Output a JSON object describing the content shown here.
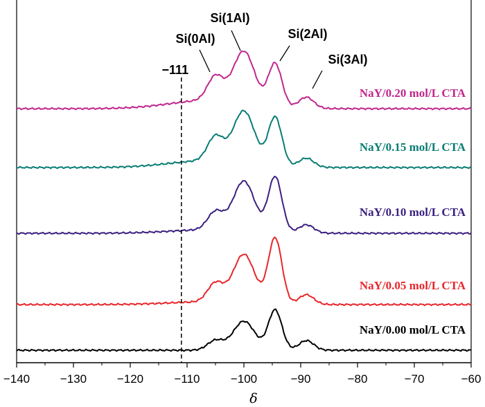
{
  "chart_data": {
    "type": "line",
    "xlabel": "δ",
    "xlim": [
      -140,
      -60
    ],
    "x_ticks": [
      "−140",
      "−130",
      "−120",
      "−110",
      "−100",
      "−90",
      "−80",
      "−70",
      "−60"
    ],
    "y_axis_visible": false,
    "grid": false,
    "reference_line": {
      "x": -111,
      "label": "−111",
      "style": "dashed"
    },
    "peak_annotations": [
      {
        "label": "Si(0Al)",
        "x": -105
      },
      {
        "label": "Si(1Al)",
        "x": -100
      },
      {
        "label": "Si(2Al)",
        "x": -94.5
      },
      {
        "label": "Si(3Al)",
        "x": -89
      }
    ],
    "peak_components": [
      {
        "name": "Si(0Al)",
        "center": -105,
        "width": 1.4
      },
      {
        "name": "Si(1Al)",
        "center": -100,
        "width": 1.9
      },
      {
        "name": "Si(2Al)",
        "center": -94.5,
        "width": 1.2
      },
      {
        "name": "Si(3Al)",
        "center": -89,
        "width": 1.3
      }
    ],
    "series": [
      {
        "name": "NaY/0.00 mol/L CTA",
        "color": "#000000",
        "amplitudes": [
          0.14,
          0.42,
          0.58,
          0.14
        ],
        "broad": 0.0
      },
      {
        "name": "NaY/0.05 mol/L CTA",
        "color": "#e8262b",
        "amplitudes": [
          0.27,
          0.7,
          0.95,
          0.14
        ],
        "broad": 0.04
      },
      {
        "name": "NaY/0.10 mol/L CTA",
        "color": "#3b1f80",
        "amplitudes": [
          0.26,
          0.72,
          0.8,
          0.12
        ],
        "broad": 0.05
      },
      {
        "name": "NaY/0.15 mol/L CTA",
        "color": "#087d73",
        "amplitudes": [
          0.35,
          0.75,
          0.7,
          0.13
        ],
        "broad": 0.1
      },
      {
        "name": "NaY/0.20 mol/L CTA",
        "color": "#c0278c",
        "amplitudes": [
          0.35,
          0.75,
          0.62,
          0.16
        ],
        "broad": 0.12
      }
    ]
  }
}
